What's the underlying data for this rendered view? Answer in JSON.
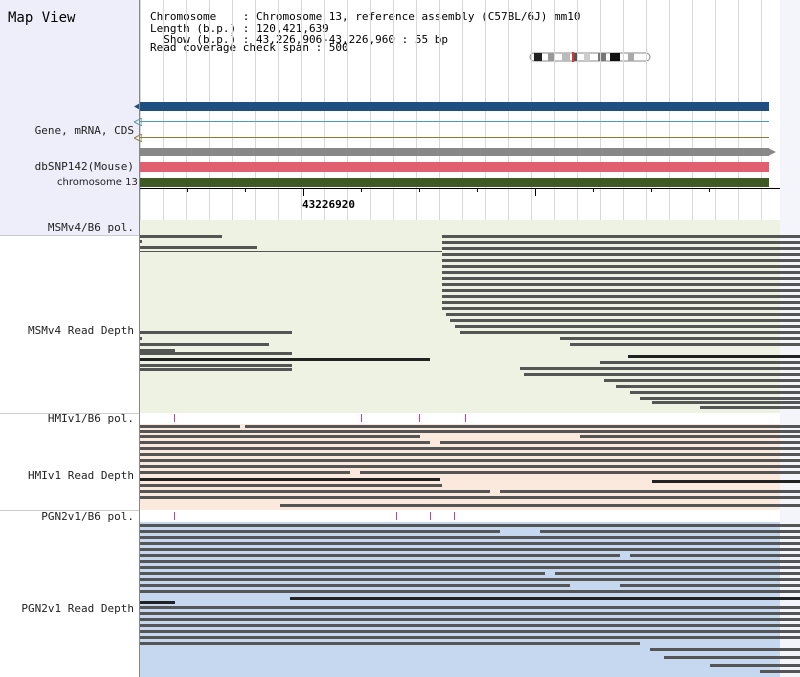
{
  "panel": {
    "title": "Map View"
  },
  "info": {
    "chromosome_line": "Chromosome    : Chromosome 13, reference assembly (C57BL/6J) mm10",
    "length_line": "Length (b.p.) : 120,421,639",
    "show_line": "  Show (b.p.) : 43,226,906-43,226,960 : 55 bp",
    "coverage_line": "Read coverage check span : 500"
  },
  "tracks": {
    "gene": "Gene, mRNA, CDS",
    "dbsnp": "dbSNP142(Mouse)",
    "chromosome": "chromosome 13",
    "msm_pol": "MSMv4/B6 pol.",
    "msm_depth": "MSMv4 Read Depth",
    "hmi_pol": "HMIv1/B6 pol.",
    "hmi_depth": "HMIv1 Read Depth",
    "pgn_pol": "PGN2v1/B6 pol.",
    "pgn_depth": "PGN2v1 Read Depth"
  },
  "ruler": {
    "position_label": "43226920"
  },
  "colors": {
    "gene_bar": "#1f4e80",
    "snp_bar": "#e06070",
    "chrom_bar": "#3f5a24",
    "msm_bg": "#eef2e2",
    "hmi_bg": "#fbe9dd",
    "pgn_bg": "#c6d8ef",
    "read": "#555555",
    "snp_mark": "#c040a0"
  }
}
